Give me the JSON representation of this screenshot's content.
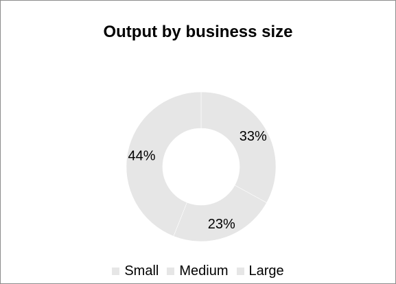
{
  "chart_data": {
    "type": "pie",
    "title": "Output by business size",
    "categories": [
      "Small",
      "Medium",
      "Large"
    ],
    "values": [
      44,
      23,
      33
    ],
    "labels": [
      "44%",
      "23%",
      "33%"
    ],
    "colors": [
      "#e6e6e6",
      "#e6e6e6",
      "#e6e6e6"
    ],
    "legend_position": "bottom"
  }
}
